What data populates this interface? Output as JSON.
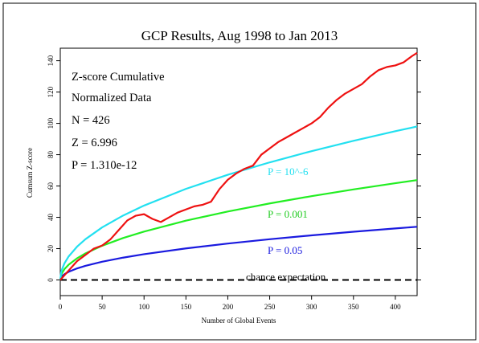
{
  "chart_data": {
    "type": "line",
    "title": "GCP Results, Aug 1998 to Jan 2013",
    "xlabel": "Number of Global Events",
    "ylabel": "Cumsum Z-score",
    "xlim": [
      0,
      426
    ],
    "ylim": [
      -10,
      148
    ],
    "xticks": [
      0,
      50,
      100,
      150,
      200,
      250,
      300,
      350,
      400
    ],
    "yticks": [
      0,
      20,
      40,
      60,
      80,
      100,
      120,
      140
    ],
    "grid": false,
    "annotations": {
      "line1": "Z-score Cumulative",
      "line2": "Normalized Data",
      "n": "N = 426",
      "z": "Z = 6.996",
      "p": "P = 1.310e-12"
    },
    "series": [
      {
        "name": "Z-score Cumulative",
        "color": "#ee1111",
        "x": [
          0,
          10,
          20,
          30,
          40,
          50,
          60,
          70,
          80,
          90,
          100,
          110,
          120,
          130,
          140,
          150,
          160,
          170,
          180,
          190,
          200,
          210,
          220,
          230,
          240,
          250,
          260,
          270,
          280,
          290,
          300,
          310,
          320,
          330,
          340,
          350,
          360,
          370,
          380,
          390,
          400,
          410,
          420,
          426
        ],
        "y": [
          0,
          6,
          12,
          16,
          20,
          22,
          26,
          32,
          38,
          41,
          42,
          39,
          37,
          40,
          43,
          45,
          47,
          48,
          50,
          58,
          64,
          68,
          71,
          73,
          80,
          84,
          88,
          91,
          94,
          97,
          100,
          104,
          110,
          115,
          119,
          122,
          125,
          130,
          134,
          136,
          137,
          139,
          143,
          145
        ]
      },
      {
        "name": "P = 10^-6",
        "color": "#22e0f0",
        "label": "P = 10^-6",
        "x": [
          0,
          1,
          2,
          5,
          10,
          20,
          30,
          50,
          75,
          100,
          150,
          200,
          250,
          300,
          350,
          400,
          426
        ],
        "y": [
          0,
          4.75,
          6.72,
          10.62,
          15.02,
          21.24,
          26.01,
          33.58,
          41.13,
          47.49,
          58.16,
          67.16,
          75.09,
          82.26,
          88.85,
          94.98,
          98.0
        ]
      },
      {
        "name": "P = 0.001",
        "color": "#22ee22",
        "label": "P = 0.001",
        "x": [
          0,
          1,
          2,
          5,
          10,
          20,
          30,
          50,
          75,
          100,
          150,
          200,
          250,
          300,
          350,
          400,
          426
        ],
        "y": [
          0,
          3.09,
          4.37,
          6.91,
          9.77,
          13.82,
          16.93,
          21.85,
          26.76,
          30.9,
          37.85,
          43.7,
          48.86,
          53.52,
          57.81,
          61.8,
          63.78
        ]
      },
      {
        "name": "P = 0.05",
        "color": "#1a1adf",
        "label": "P = 0.05",
        "x": [
          0,
          1,
          2,
          5,
          10,
          20,
          30,
          50,
          75,
          100,
          150,
          200,
          250,
          300,
          350,
          400,
          426
        ],
        "y": [
          0,
          1.645,
          2.33,
          3.68,
          5.2,
          7.36,
          9.01,
          11.63,
          14.25,
          16.45,
          20.15,
          23.26,
          26.01,
          28.49,
          30.77,
          32.9,
          33.95
        ]
      },
      {
        "name": "chance expectation",
        "color": "#000000",
        "label": "chance expectation",
        "dashed": true,
        "x": [
          0,
          426
        ],
        "y": [
          0,
          0
        ]
      }
    ]
  }
}
